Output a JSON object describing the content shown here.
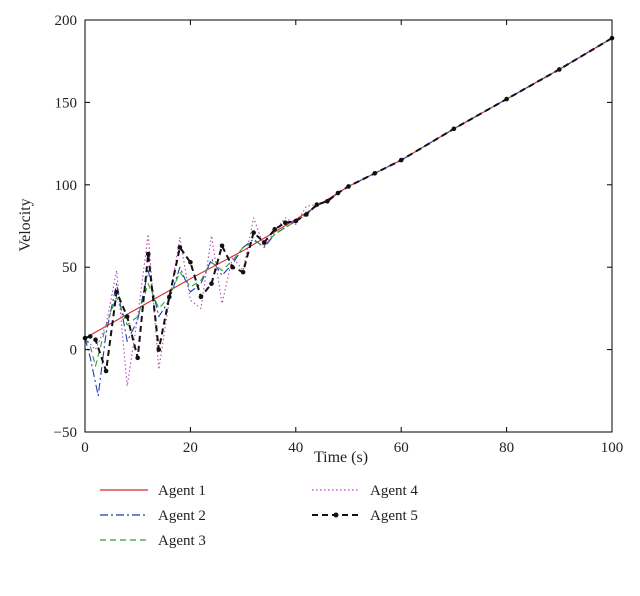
{
  "chart_data": {
    "type": "line",
    "title": "",
    "xlabel": "Time (s)",
    "ylabel": "Velocity",
    "xlim": [
      0,
      100
    ],
    "ylim": [
      -50,
      200
    ],
    "xticks": [
      0,
      20,
      40,
      60,
      80,
      100
    ],
    "yticks": [
      -50,
      0,
      50,
      100,
      150,
      200
    ],
    "grid": false,
    "legend_position": "bottom",
    "series": [
      {
        "name": "Agent 1",
        "color": "#d62728",
        "dash": "solid",
        "x": [
          0,
          10,
          20,
          30,
          40,
          50,
          60,
          70,
          80,
          90,
          100
        ],
        "y": [
          7,
          25,
          43,
          60,
          79,
          99,
          115,
          134,
          152,
          170,
          189
        ]
      },
      {
        "name": "Agent 2",
        "color": "#1f3fa8",
        "dash": "dashdot",
        "x": [
          0,
          1,
          2.5,
          4,
          6,
          8,
          10,
          12,
          14,
          16,
          18,
          20,
          22,
          24,
          26,
          28,
          30,
          32,
          34,
          36,
          38,
          40,
          42,
          44,
          46,
          48,
          50,
          55,
          60,
          70,
          80,
          90,
          100
        ],
        "y": [
          7,
          -5,
          -28,
          10,
          40,
          5,
          18,
          48,
          20,
          30,
          50,
          35,
          40,
          55,
          45,
          52,
          62,
          67,
          62,
          70,
          74,
          78,
          82,
          88,
          90,
          95,
          99,
          107,
          115,
          134,
          152,
          170,
          189
        ]
      },
      {
        "name": "Agent 3",
        "color": "#2ca02c",
        "dash": "dashed",
        "x": [
          0,
          1,
          2,
          4,
          6,
          8,
          10,
          12,
          14,
          16,
          18,
          20,
          22,
          24,
          26,
          28,
          30,
          32,
          34,
          36,
          38,
          40,
          42,
          44,
          46,
          48,
          50,
          55,
          60,
          70,
          80,
          90,
          100
        ],
        "y": [
          7,
          2,
          -10,
          15,
          32,
          15,
          20,
          40,
          25,
          32,
          47,
          38,
          42,
          53,
          48,
          54,
          62,
          66,
          63,
          70,
          74,
          78,
          82,
          88,
          90,
          95,
          99,
          107,
          115,
          134,
          152,
          170,
          189
        ]
      },
      {
        "name": "Agent 4",
        "color": "#c040c0",
        "dash": "dotted",
        "x": [
          0,
          2,
          4,
          6,
          8,
          10,
          12,
          14,
          16,
          18,
          20,
          22,
          24,
          26,
          28,
          30,
          32,
          34,
          36,
          38,
          40,
          42,
          44,
          46,
          48,
          50,
          55,
          60,
          70,
          80,
          90,
          100
        ],
        "y": [
          7,
          0,
          15,
          48,
          -22,
          20,
          70,
          -12,
          30,
          68,
          30,
          25,
          69,
          28,
          56,
          48,
          80,
          62,
          72,
          80,
          76,
          87,
          88,
          90,
          95,
          99,
          107,
          115,
          134,
          152,
          170,
          189
        ]
      },
      {
        "name": "Agent 5",
        "color": "#111111",
        "dash": "dashed-marker",
        "x": [
          0,
          1,
          2,
          4,
          6,
          8,
          10,
          12,
          14,
          16,
          18,
          20,
          22,
          24,
          26,
          28,
          30,
          32,
          34,
          36,
          38,
          40,
          42,
          44,
          46,
          48,
          50,
          55,
          60,
          70,
          80,
          90,
          100
        ],
        "y": [
          7,
          8,
          6,
          -13,
          35,
          20,
          -5,
          58,
          0,
          32,
          62,
          53,
          32,
          40,
          63,
          50,
          47,
          71,
          65,
          73,
          77,
          78,
          82,
          88,
          90,
          95,
          99,
          107,
          115,
          134,
          152,
          170,
          189
        ]
      }
    ]
  }
}
